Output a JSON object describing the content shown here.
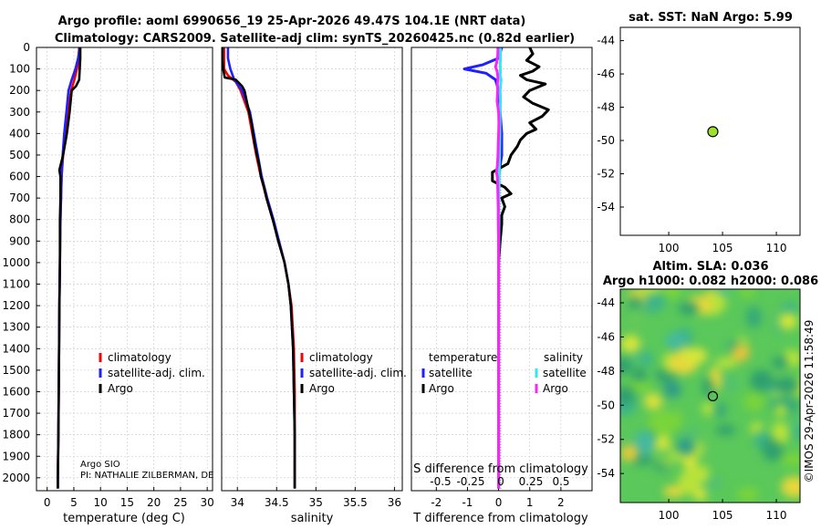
{
  "header": {
    "title_line1": "Argo profile: aoml 6990656_19 25-Apr-2026 49.47S 104.1E (NRT data)",
    "title_line2": "Climatology: CARS2009. Satellite-adj clim: synTS_20260425.nc (0.82d earlier)"
  },
  "colors": {
    "climatology": "#ff0000",
    "satellite": "#1f1fff",
    "argo": "#000000",
    "sat_temp_diff": "#33e6f0",
    "argo_sal_diff": "#ff22ff",
    "marker_fill": "#9ee02a",
    "grid": "#c8c8c8"
  },
  "depth_axis": {
    "min": 0,
    "max": 2060,
    "ticks": [
      0,
      100,
      200,
      300,
      400,
      500,
      600,
      700,
      800,
      900,
      1000,
      1100,
      1200,
      1300,
      1400,
      1500,
      1600,
      1700,
      1800,
      1900,
      2000
    ]
  },
  "footer": {
    "pi_line1": "Argo SIO",
    "pi_line2": "PI: NATHALIE ZILBERMAN, DE",
    "timestamp": "©IMOS 29-Apr-2026 11:58:49"
  },
  "chart_data": [
    {
      "type": "line",
      "name": "temperature-profile",
      "xlabel": "temperature (deg C)",
      "xlim": [
        -2,
        31
      ],
      "xticks": [
        0,
        5,
        10,
        15,
        20,
        25,
        30
      ],
      "xtick_labels": [
        "0",
        "5",
        "10",
        "15",
        "20",
        "25",
        "30"
      ],
      "legend": [
        "climatology",
        "satellite-adj. clim.",
        "Argo"
      ],
      "legend_position": "middle-right",
      "series": [
        {
          "name": "climatology",
          "depth": [
            0,
            50,
            100,
            150,
            200,
            300,
            400,
            500,
            600,
            700,
            800,
            1000,
            1200,
            1500,
            1800,
            2000,
            2050
          ],
          "values": [
            6.0,
            5.9,
            5.6,
            5.1,
            4.5,
            3.9,
            3.4,
            3.0,
            2.7,
            2.6,
            2.5,
            2.4,
            2.3,
            2.2,
            2.1,
            2.0,
            2.0
          ]
        },
        {
          "name": "satellite-adj. clim.",
          "depth": [
            0,
            50,
            100,
            150,
            200,
            300,
            400,
            500,
            600,
            700,
            800,
            1000,
            1200,
            1500,
            1800,
            2000,
            2050
          ],
          "values": [
            6.1,
            5.8,
            5.3,
            4.6,
            4.0,
            3.6,
            3.2,
            2.9,
            2.7,
            2.6,
            2.5,
            2.4,
            2.3,
            2.2,
            2.1,
            2.0,
            2.0
          ]
        },
        {
          "name": "Argo",
          "depth": [
            0,
            50,
            100,
            150,
            180,
            200,
            300,
            400,
            500,
            570,
            600,
            700,
            800,
            1000,
            1200,
            1500,
            1800,
            2000,
            2050
          ],
          "values": [
            6.2,
            6.2,
            6.1,
            6.0,
            5.4,
            4.6,
            4.2,
            3.7,
            3.0,
            2.3,
            2.5,
            2.5,
            2.4,
            2.4,
            2.3,
            2.2,
            2.1,
            2.0,
            2.0
          ]
        }
      ]
    },
    {
      "type": "line",
      "name": "salinity-profile",
      "xlabel": "salinity",
      "xlim": [
        33.8,
        36.1
      ],
      "xticks": [
        34,
        34.5,
        35,
        35.5,
        36
      ],
      "xtick_labels": [
        "34",
        "34.5",
        "35",
        "35.5",
        "36"
      ],
      "legend": [
        "climatology",
        "satellite-adj. clim.",
        "Argo"
      ],
      "legend_position": "middle-right",
      "series": [
        {
          "name": "climatology",
          "depth": [
            0,
            50,
            100,
            130,
            160,
            200,
            300,
            400,
            500,
            600,
            700,
            800,
            900,
            1000,
            1100,
            1200,
            1400,
            1600,
            1800,
            2000,
            2050
          ],
          "values": [
            33.83,
            33.83,
            33.83,
            33.88,
            33.98,
            34.04,
            34.14,
            34.19,
            34.24,
            34.3,
            34.37,
            34.45,
            34.53,
            34.6,
            34.65,
            34.69,
            34.72,
            34.73,
            34.73,
            34.73,
            34.73
          ]
        },
        {
          "name": "satellite-adj. clim.",
          "depth": [
            0,
            50,
            100,
            150,
            200,
            300,
            400,
            500,
            600,
            700,
            800,
            900,
            1000,
            1100,
            1200,
            1400,
            1600,
            1800,
            2000,
            2050
          ],
          "values": [
            33.88,
            33.88,
            33.91,
            33.96,
            34.06,
            34.16,
            34.21,
            34.26,
            34.31,
            34.38,
            34.46,
            34.53,
            34.6,
            34.65,
            34.68,
            34.71,
            34.72,
            34.73,
            34.73,
            34.73
          ]
        },
        {
          "name": "Argo",
          "depth": [
            0,
            50,
            100,
            140,
            150,
            180,
            200,
            250,
            300,
            350,
            400,
            450,
            500,
            550,
            600,
            650,
            700,
            800,
            900,
            1000,
            1100,
            1200,
            1400,
            1600,
            1800,
            2000,
            2050
          ],
          "values": [
            33.81,
            33.81,
            33.82,
            33.84,
            33.98,
            34.06,
            34.09,
            34.12,
            34.15,
            34.18,
            34.2,
            34.22,
            34.25,
            34.28,
            34.3,
            34.34,
            34.37,
            34.45,
            34.52,
            34.6,
            34.65,
            34.68,
            34.71,
            34.72,
            34.73,
            34.73,
            34.73
          ]
        }
      ]
    },
    {
      "type": "line",
      "name": "difference-profile",
      "xlabel": "T difference from climatology",
      "secondary_xlabel": "S difference from climatology",
      "xlim": [
        -2.8,
        3.0
      ],
      "xticks": [
        -2,
        -1,
        0,
        1,
        2
      ],
      "xtick_labels": [
        "-2",
        "-1",
        "0",
        "1",
        "2"
      ],
      "sal_xticks": [
        -0.5,
        -0.25,
        0,
        0.25,
        0.5
      ],
      "sal_xtick_labels": [
        "-0.5",
        "-0.25",
        "0",
        "0.25",
        "0.5"
      ],
      "legend_temperature_title": "temperature",
      "legend_salinity_title": "salinity",
      "legend_temperature": [
        "satellite",
        "Argo"
      ],
      "legend_salinity": [
        "satellite",
        "Argo"
      ],
      "legend_position": "middle",
      "series": [
        {
          "name": "T satellite - clim",
          "depth": [
            0,
            50,
            80,
            100,
            120,
            150,
            200,
            300,
            400,
            500,
            600,
            700,
            800,
            1000,
            1500,
            2000,
            2050
          ],
          "values": [
            0.1,
            0.0,
            -0.5,
            -1.1,
            -0.4,
            -0.1,
            0.0,
            0.05,
            0.1,
            0.1,
            0.0,
            0.0,
            0.0,
            0.0,
            0.0,
            0.0,
            0.0
          ]
        },
        {
          "name": "T Argo - clim",
          "depth": [
            0,
            30,
            60,
            90,
            110,
            130,
            150,
            170,
            200,
            230,
            260,
            290,
            320,
            350,
            380,
            400,
            430,
            460,
            500,
            540,
            580,
            620,
            650,
            680,
            700,
            740,
            780,
            820,
            900,
            1000,
            1100,
            1300,
            1600,
            2000,
            2050
          ],
          "values": [
            1.0,
            1.1,
            0.9,
            1.3,
            1.1,
            0.7,
            0.9,
            1.5,
            1.0,
            0.8,
            1.1,
            1.6,
            1.4,
            1.0,
            1.2,
            0.9,
            0.7,
            0.6,
            0.4,
            0.3,
            -0.2,
            -0.2,
            0.2,
            0.4,
            0.1,
            0.2,
            0.1,
            0.1,
            0.05,
            0.0,
            0.0,
            0.0,
            0.0,
            0.0,
            0.0
          ]
        },
        {
          "name": "S satellite - clim",
          "depth": [
            0,
            50,
            80,
            100,
            130,
            150,
            200,
            250,
            300,
            400,
            500,
            600,
            700,
            800,
            900,
            1000,
            1200,
            1500,
            2000,
            2050
          ],
          "values": [
            0.06,
            0.06,
            0.05,
            0.06,
            0.05,
            0.08,
            0.05,
            0.06,
            0.05,
            0.04,
            0.03,
            0.02,
            0.01,
            0.01,
            0.01,
            0.0,
            0.0,
            0.0,
            0.0,
            0.0
          ]
        },
        {
          "name": "S Argo - clim",
          "depth": [
            0,
            40,
            70,
            90,
            110,
            130,
            150,
            170,
            200,
            250,
            300,
            350,
            400,
            450,
            500,
            550,
            580,
            600,
            650,
            700,
            750,
            800,
            900,
            1000,
            1200,
            1500,
            2000,
            2050
          ],
          "values": [
            -0.02,
            -0.03,
            -0.06,
            -0.1,
            -0.05,
            -0.03,
            -0.02,
            -0.04,
            -0.03,
            -0.05,
            0.0,
            0.01,
            0.0,
            -0.01,
            -0.02,
            -0.04,
            -0.07,
            -0.04,
            -0.03,
            -0.02,
            -0.01,
            -0.01,
            0.0,
            0.0,
            0.0,
            0.0,
            0.0,
            0.0
          ]
        }
      ]
    },
    {
      "type": "scatter",
      "name": "sst-map",
      "title": "sat. SST: NaN Argo: 5.99",
      "xlim": [
        95.5,
        112.2
      ],
      "ylim": [
        -55.7,
        -43.2
      ],
      "xticks": [
        100,
        105,
        110
      ],
      "xtick_labels": [
        "100",
        "105",
        "110"
      ],
      "yticks": [
        -44,
        -46,
        -48,
        -50,
        -52,
        -54
      ],
      "ytick_labels": [
        "-44",
        "-46",
        "-48",
        "-50",
        "-52",
        "-54"
      ],
      "points": [
        {
          "lon": 104.1,
          "lat": -49.47
        }
      ]
    },
    {
      "type": "heatmap",
      "name": "sla-map",
      "title_line1": "Altim. SLA: 0.036",
      "title_line2": "Argo h1000: 0.082 h2000: 0.086",
      "xlim": [
        95.5,
        112.2
      ],
      "ylim": [
        -55.7,
        -43.2
      ],
      "xticks": [
        100,
        105,
        110
      ],
      "xtick_labels": [
        "100",
        "105",
        "110"
      ],
      "yticks": [
        -44,
        -46,
        -48,
        -50,
        -52,
        -54
      ],
      "ytick_labels": [
        "-44",
        "-46",
        "-48",
        "-50",
        "-52",
        "-54"
      ],
      "points": [
        {
          "lon": 104.1,
          "lat": -49.47
        }
      ]
    }
  ]
}
